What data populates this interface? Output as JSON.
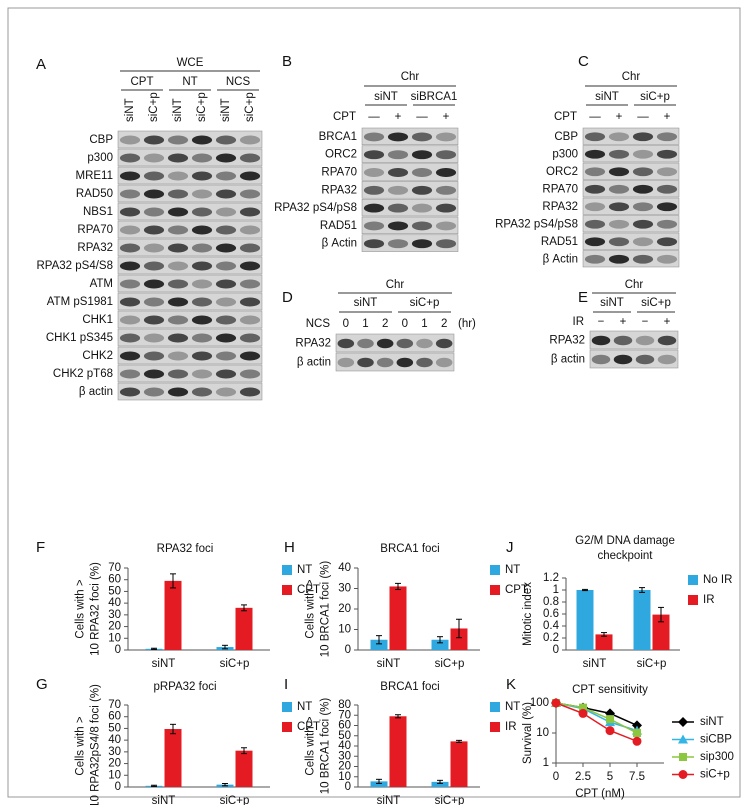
{
  "blots": [
    {
      "label": "A",
      "header": "WCE",
      "groups": [
        "CPT",
        "NT",
        "NCS"
      ],
      "lanes": [
        "siNT",
        "siC+p",
        "siNT",
        "siC+p",
        "siNT",
        "siC+p"
      ],
      "rows": [
        "CBP",
        "p300",
        "MRE11",
        "RAD50",
        "NBS1",
        "RPA70",
        "RPA32",
        "RPA32 pS4/S8",
        "ATM",
        "ATM pS1981",
        "CHK1",
        "CHK1 pS345",
        "CHK2",
        "CHK2 pT68",
        "β actin"
      ]
    },
    {
      "label": "B",
      "header": "Chr",
      "groups": [
        "siNT",
        "siBRCA1"
      ],
      "treatment": "CPT",
      "treatment_marks": [
        "—",
        "+",
        "—",
        "+"
      ],
      "rows": [
        "BRCA1",
        "ORC2",
        "RPA70",
        "RPA32",
        "RPA32 pS4/pS8",
        "RAD51",
        "β Actin"
      ]
    },
    {
      "label": "C",
      "header": "Chr",
      "groups": [
        "siNT",
        "siC+p"
      ],
      "treatment": "CPT",
      "treatment_marks": [
        "—",
        "+",
        "—",
        "+"
      ],
      "rows": [
        "CBP",
        "p300",
        "ORC2",
        "RPA70",
        "RPA32",
        "RPA32 pS4/pS8",
        "RAD51",
        "β Actin"
      ]
    },
    {
      "label": "D",
      "header": "Chr",
      "groups": [
        "siNT",
        "siC+p"
      ],
      "treatment": "NCS",
      "treatment_marks": [
        "0",
        "1",
        "2",
        "0",
        "1",
        "2"
      ],
      "unit": "(hr)",
      "rows": [
        "RPA32",
        "β actin"
      ]
    },
    {
      "label": "E",
      "header": "Chr",
      "groups": [
        "siNT",
        "siC+p"
      ],
      "treatment": "IR",
      "treatment_marks": [
        "−",
        "+",
        "−",
        "+"
      ],
      "rows": [
        "RPA32",
        "β actin"
      ]
    }
  ],
  "chart_data": [
    {
      "type": "bar",
      "label": "F",
      "title": "RPA32 foci",
      "y_label": [
        "Cells with >",
        "10 RPA32 foci (%)"
      ],
      "categories": [
        "siNT",
        "siC+p"
      ],
      "series": [
        {
          "name": "NT",
          "color": "#2ea8df",
          "values": [
            1,
            2.5
          ],
          "errors": [
            0.5,
            1.5
          ]
        },
        {
          "name": "CPT",
          "color": "#e41b23",
          "values": [
            59,
            36
          ],
          "errors": [
            6,
            2.5
          ]
        }
      ],
      "ylim": [
        0,
        70
      ],
      "yticks": [
        0,
        10,
        20,
        30,
        40,
        50,
        60,
        70
      ]
    },
    {
      "type": "bar",
      "label": "G",
      "title": "pRPA32 foci",
      "y_label": [
        "Cells with >",
        "10 RPA32pS4/8 foci (%)"
      ],
      "categories": [
        "siNT",
        "siC+p"
      ],
      "series": [
        {
          "name": "NT",
          "color": "#2ea8df",
          "values": [
            1,
            2
          ],
          "errors": [
            0.5,
            1
          ]
        },
        {
          "name": "CPT",
          "color": "#e41b23",
          "values": [
            49.5,
            31
          ],
          "errors": [
            4,
            2.5
          ]
        }
      ],
      "ylim": [
        0,
        70
      ],
      "yticks": [
        0,
        10,
        20,
        30,
        40,
        50,
        60,
        70
      ]
    },
    {
      "type": "bar",
      "label": "H",
      "title": "BRCA1 foci",
      "y_label": [
        "Cells with >",
        "10 BRCA1 foci (%)"
      ],
      "categories": [
        "siNT",
        "siC+p"
      ],
      "series": [
        {
          "name": "NT",
          "color": "#2ea8df",
          "values": [
            5,
            5
          ],
          "errors": [
            2,
            1.5
          ]
        },
        {
          "name": "CPT",
          "color": "#e41b23",
          "values": [
            31,
            10.5
          ],
          "errors": [
            1.5,
            4.5
          ]
        }
      ],
      "ylim": [
        0,
        40
      ],
      "yticks": [
        0,
        10,
        20,
        30,
        40
      ]
    },
    {
      "type": "bar",
      "label": "I",
      "title": "BRCA1 foci",
      "y_label": [
        "Cells with >",
        "10 BRCA1 foci (%)"
      ],
      "categories": [
        "siNT",
        "siC+p"
      ],
      "series": [
        {
          "name": "NT",
          "color": "#2ea8df",
          "values": [
            5.5,
            5
          ],
          "errors": [
            2,
            1.5
          ]
        },
        {
          "name": "IR",
          "color": "#e41b23",
          "values": [
            69,
            44.5
          ],
          "errors": [
            1.5,
            1
          ]
        }
      ],
      "ylim": [
        0,
        80
      ],
      "yticks": [
        0,
        10,
        20,
        30,
        40,
        50,
        60,
        70,
        80
      ]
    },
    {
      "type": "bar",
      "label": "J",
      "title": [
        "G2/M DNA damage",
        "checkpoint"
      ],
      "y_label": [
        "Mitotic index"
      ],
      "categories": [
        "siNT",
        "siC+p"
      ],
      "series": [
        {
          "name": "No IR",
          "color": "#2ea8df",
          "values": [
            1,
            1
          ],
          "errors": [
            0.01,
            0.04
          ]
        },
        {
          "name": "IR",
          "color": "#e41b23",
          "values": [
            0.26,
            0.59
          ],
          "errors": [
            0.03,
            0.12
          ]
        }
      ],
      "ylim": [
        0,
        1.2
      ],
      "yticks": [
        0,
        0.2,
        0.4,
        0.6,
        0.8,
        1,
        1.2
      ]
    },
    {
      "type": "line",
      "label": "K",
      "title": "CPT sensitivity",
      "y_label": [
        "Survival (%)"
      ],
      "x_label": "CPT (nM)",
      "x": [
        0,
        2.5,
        5,
        7.5
      ],
      "log_y": true,
      "series": [
        {
          "name": "siNT",
          "color": "#000000",
          "marker": "diamond",
          "values": [
            100,
            70,
            45,
            18
          ],
          "errors": [
            0,
            3,
            3,
            2
          ]
        },
        {
          "name": "siCBP",
          "color": "#33b5e5",
          "marker": "triangle",
          "values": [
            100,
            65,
            23,
            12
          ],
          "errors": [
            0,
            3,
            2,
            1.5
          ]
        },
        {
          "name": "sip300",
          "color": "#8dc63f",
          "marker": "square",
          "values": [
            100,
            70,
            29,
            10
          ],
          "errors": [
            0,
            3,
            3,
            1.5
          ]
        },
        {
          "name": "siC+p",
          "color": "#e41b23",
          "marker": "circle",
          "values": [
            100,
            45,
            12,
            5.3
          ],
          "errors": [
            0,
            5,
            2.5,
            0.8
          ]
        }
      ],
      "xlim": [
        0,
        10
      ],
      "xticks": [
        0,
        2.5,
        5,
        7.5
      ],
      "ylim": [
        1,
        100
      ],
      "yticks": [
        1,
        10,
        100
      ]
    }
  ]
}
